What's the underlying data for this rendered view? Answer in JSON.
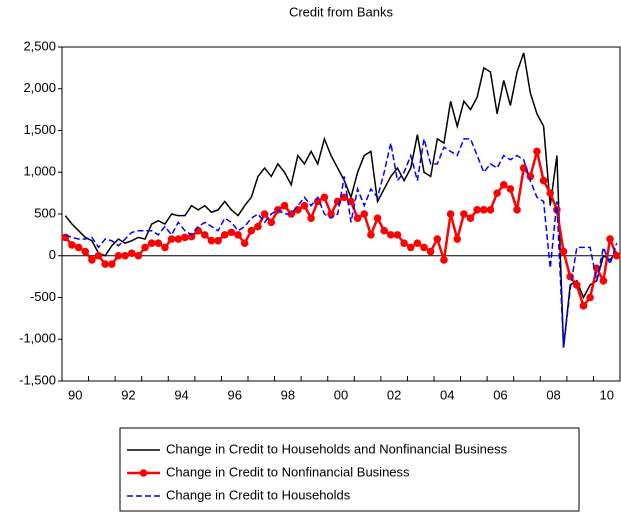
{
  "chart_data": {
    "type": "line",
    "title": "Credit from Banks",
    "xlim": [
      1990,
      2011
    ],
    "xticks": [
      {
        "value": 1990.5,
        "label": "90"
      },
      {
        "value": 1992.5,
        "label": "92"
      },
      {
        "value": 1994.5,
        "label": "94"
      },
      {
        "value": 1996.5,
        "label": "96"
      },
      {
        "value": 1998.5,
        "label": "98"
      },
      {
        "value": 2000.5,
        "label": "00"
      },
      {
        "value": 2002.5,
        "label": "02"
      },
      {
        "value": 2004.5,
        "label": "04"
      },
      {
        "value": 2006.5,
        "label": "06"
      },
      {
        "value": 2008.5,
        "label": "08"
      },
      {
        "value": 2010.5,
        "label": "10"
      }
    ],
    "ylim": [
      -1500,
      2500
    ],
    "yticks": [
      {
        "value": -1500,
        "label": "-1,500"
      },
      {
        "value": -1000,
        "label": "-1,000"
      },
      -500,
      0,
      500,
      {
        "value": 1000,
        "label": "1,000"
      },
      {
        "value": 1500,
        "label": "1,500"
      },
      {
        "value": 2000,
        "label": "2,000"
      },
      {
        "value": 2500,
        "label": "2,500"
      }
    ],
    "zero_line": true,
    "legend": "bottom",
    "x": [
      1990.125,
      1990.375,
      1990.625,
      1990.875,
      1991.125,
      1991.375,
      1991.625,
      1991.875,
      1992.125,
      1992.375,
      1992.625,
      1992.875,
      1993.125,
      1993.375,
      1993.625,
      1993.875,
      1994.125,
      1994.375,
      1994.625,
      1994.875,
      1995.125,
      1995.375,
      1995.625,
      1995.875,
      1996.125,
      1996.375,
      1996.625,
      1996.875,
      1997.125,
      1997.375,
      1997.625,
      1997.875,
      1998.125,
      1998.375,
      1998.625,
      1998.875,
      1999.125,
      1999.375,
      1999.625,
      1999.875,
      2000.125,
      2000.375,
      2000.625,
      2000.875,
      2001.125,
      2001.375,
      2001.625,
      2001.875,
      2002.125,
      2002.375,
      2002.625,
      2002.875,
      2003.125,
      2003.375,
      2003.625,
      2003.875,
      2004.125,
      2004.375,
      2004.625,
      2004.875,
      2005.125,
      2005.375,
      2005.625,
      2005.875,
      2006.125,
      2006.375,
      2006.625,
      2006.875,
      2007.125,
      2007.375,
      2007.625,
      2007.875,
      2008.125,
      2008.375,
      2008.625,
      2008.875,
      2009.125,
      2009.375,
      2009.625,
      2009.875,
      2010.125,
      2010.375,
      2010.625,
      2010.875
    ],
    "series": [
      {
        "name": "Change in Credit to Households and Nonfinancial Business",
        "color": "#000000",
        "dashed": false,
        "markers": false,
        "values": [
          480,
          380,
          300,
          220,
          180,
          30,
          0,
          120,
          200,
          150,
          180,
          220,
          200,
          380,
          420,
          380,
          500,
          480,
          480,
          600,
          550,
          600,
          520,
          550,
          650,
          550,
          480,
          600,
          700,
          950,
          1050,
          950,
          1100,
          1000,
          850,
          1200,
          1100,
          1250,
          1100,
          1400,
          1200,
          1050,
          900,
          700,
          1000,
          1200,
          1250,
          650,
          800,
          950,
          1050,
          900,
          1050,
          1450,
          1000,
          950,
          1400,
          1350,
          1850,
          1550,
          1850,
          1750,
          1900,
          2250,
          2200,
          1700,
          2100,
          1800,
          2200,
          2430,
          1950,
          1700,
          1550,
          600,
          1200,
          -1100,
          -350,
          -300,
          -500,
          -350,
          -300,
          0,
          -50,
          50
        ]
      },
      {
        "name": "Change in Credit to Nonfinancial Business",
        "color": "#ff0000",
        "dashed": false,
        "markers": true,
        "values": [
          220,
          130,
          100,
          50,
          -50,
          0,
          -100,
          -100,
          0,
          0,
          30,
          0,
          100,
          150,
          150,
          100,
          200,
          200,
          220,
          230,
          300,
          250,
          180,
          180,
          250,
          280,
          250,
          150,
          300,
          350,
          500,
          400,
          550,
          600,
          500,
          550,
          600,
          450,
          650,
          700,
          500,
          650,
          700,
          650,
          450,
          500,
          250,
          450,
          300,
          250,
          250,
          150,
          100,
          150,
          100,
          50,
          200,
          -50,
          500,
          200,
          500,
          450,
          550,
          550,
          550,
          750,
          850,
          800,
          550,
          1050,
          950,
          1250,
          900,
          750,
          550,
          50,
          -250,
          -350,
          -600,
          -500,
          -150,
          -300,
          200,
          0
        ]
      },
      {
        "name": "Change in Credit to Households",
        "color": "#0000ff",
        "dashed": true,
        "markers": false,
        "values": [
          250,
          220,
          200,
          200,
          220,
          100,
          200,
          180,
          120,
          200,
          280,
          300,
          300,
          300,
          250,
          350,
          250,
          400,
          300,
          250,
          350,
          400,
          350,
          300,
          450,
          400,
          300,
          350,
          450,
          500,
          400,
          500,
          550,
          500,
          500,
          600,
          700,
          600,
          700,
          500,
          450,
          500,
          950,
          400,
          800,
          600,
          800,
          700,
          1000,
          1350,
          900,
          1000,
          1200,
          900,
          1400,
          1100,
          1100,
          1300,
          1250,
          1200,
          1400,
          1400,
          1200,
          1000,
          1100,
          1050,
          1200,
          1150,
          1200,
          1150,
          900,
          700,
          650,
          -150,
          650,
          -1100,
          -400,
          100,
          100,
          100,
          -300,
          100,
          -100,
          150
        ]
      }
    ]
  }
}
